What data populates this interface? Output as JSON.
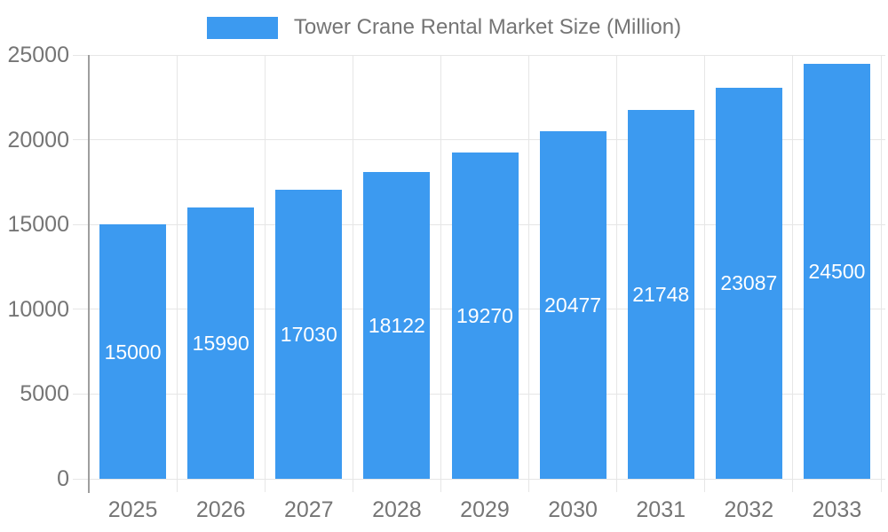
{
  "chart_data": {
    "type": "bar",
    "title": "Tower Crane Rental Market Size (Million)",
    "categories": [
      "2025",
      "2026",
      "2027",
      "2028",
      "2029",
      "2030",
      "2031",
      "2032",
      "2033"
    ],
    "values": [
      15000,
      15990,
      17030,
      18122,
      19270,
      20477,
      21748,
      23087,
      24500
    ],
    "xlabel": "",
    "ylabel": "",
    "ylim": [
      0,
      25000
    ],
    "y_ticks": [
      0,
      5000,
      10000,
      15000,
      20000,
      25000
    ],
    "grid": true,
    "legend_position": "top",
    "bar_labels_inside": true,
    "colors": {
      "bar": "#3C9AF0",
      "bar_label": "#FFFFFF",
      "axis_text": "#757575",
      "gridline": "#E6E6E6",
      "axis_line": "#9E9E9E",
      "background": "#FFFFFF"
    }
  }
}
